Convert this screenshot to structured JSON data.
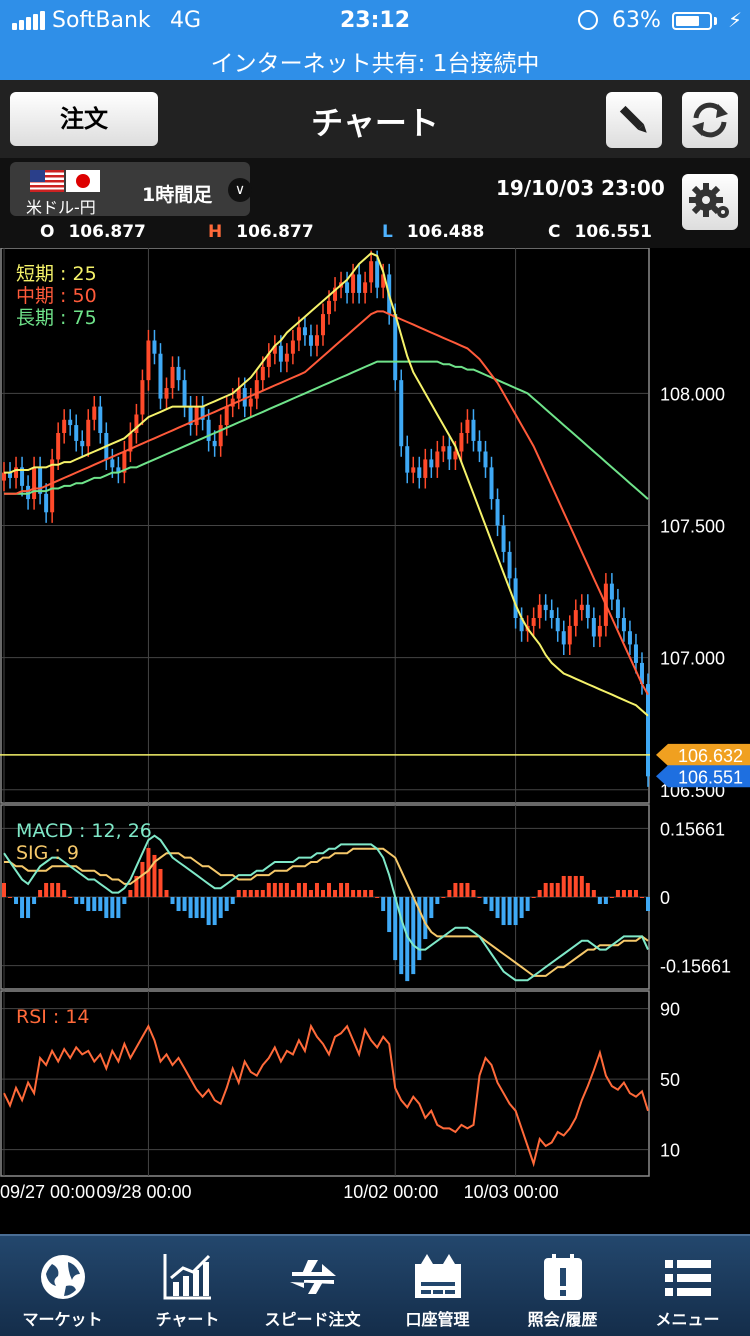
{
  "status_bar": {
    "carrier": "SoftBank",
    "network": "4G",
    "time": "23:12",
    "battery_pct": "63%",
    "battery_level": 0.63,
    "hotspot": "インターネット共有: 1台接続中"
  },
  "nav": {
    "order_label": "注文",
    "title": "チャート",
    "edit_icon": "pencil-icon",
    "refresh_icon": "refresh-icon"
  },
  "header": {
    "pair_label": "米ドル-円",
    "timeframe": "1時間足",
    "datetime": "19/10/03  23:00",
    "settings_icon": "gear-icon",
    "ohlc": [
      {
        "key": "O",
        "value": "106.877",
        "color": "#ffffff"
      },
      {
        "key": "H",
        "value": "106.877",
        "color": "#ff6a3a"
      },
      {
        "key": "L",
        "value": "106.488",
        "color": "#4fb3ff"
      },
      {
        "key": "C",
        "value": "106.551",
        "color": "#ffffff"
      }
    ]
  },
  "chart_data": [
    {
      "type": "candlestick",
      "legend": [
        {
          "label": "短期 : 25",
          "color": "#f5f26a"
        },
        {
          "label": "中期 : 50",
          "color": "#ff5a3a"
        },
        {
          "label": "長期 : 75",
          "color": "#6fe38a"
        }
      ],
      "y_ticks": [
        "108.000",
        "107.500",
        "107.000",
        "106.500"
      ],
      "y_tick_values": [
        108.0,
        107.5,
        107.0,
        106.5
      ],
      "ylim": [
        106.45,
        108.55
      ],
      "x_labels": [
        "09/27 00:00",
        "09/28 00:00",
        "10/02 00:00",
        "10/03 00:00"
      ],
      "x_label_index": [
        0,
        24,
        65,
        85
      ],
      "bars": 108,
      "close": [
        107.7,
        107.68,
        107.72,
        107.65,
        107.6,
        107.72,
        107.62,
        107.55,
        107.75,
        107.85,
        107.9,
        107.88,
        107.82,
        107.8,
        107.9,
        107.95,
        107.85,
        107.75,
        107.72,
        107.7,
        107.78,
        107.85,
        107.92,
        108.05,
        108.2,
        108.15,
        107.98,
        108.02,
        108.1,
        108.05,
        107.95,
        107.88,
        107.95,
        107.9,
        107.82,
        107.8,
        107.88,
        107.95,
        107.98,
        108.02,
        107.95,
        107.98,
        108.05,
        108.1,
        108.15,
        108.18,
        108.12,
        108.15,
        108.2,
        108.25,
        108.22,
        108.18,
        108.22,
        108.3,
        108.35,
        108.4,
        108.42,
        108.38,
        108.45,
        108.38,
        108.42,
        108.5,
        108.4,
        108.45,
        108.3,
        108.05,
        107.8,
        107.7,
        107.72,
        107.68,
        107.75,
        107.72,
        107.78,
        107.8,
        107.75,
        107.78,
        107.85,
        107.9,
        107.82,
        107.78,
        107.72,
        107.6,
        107.5,
        107.4,
        107.3,
        107.15,
        107.1,
        107.12,
        107.15,
        107.2,
        107.18,
        107.15,
        107.1,
        107.05,
        107.12,
        107.18,
        107.2,
        107.15,
        107.08,
        107.12,
        107.28,
        107.22,
        107.15,
        107.1,
        107.05,
        106.98,
        106.9,
        106.551
      ],
      "ma_short": [
        107.7,
        107.7,
        107.71,
        107.71,
        107.71,
        107.72,
        107.72,
        107.72,
        107.73,
        107.73,
        107.74,
        107.74,
        107.75,
        107.76,
        107.77,
        107.78,
        107.79,
        107.8,
        107.81,
        107.82,
        107.83,
        107.85,
        107.87,
        107.89,
        107.91,
        107.92,
        107.93,
        107.94,
        107.95,
        107.95,
        107.95,
        107.95,
        107.95,
        107.95,
        107.96,
        107.97,
        107.98,
        107.99,
        108.0,
        108.02,
        108.04,
        108.06,
        108.09,
        108.12,
        108.15,
        108.18,
        108.2,
        108.23,
        108.25,
        108.27,
        108.29,
        108.31,
        108.33,
        108.35,
        108.37,
        108.39,
        108.41,
        108.43,
        108.46,
        108.49,
        108.51,
        108.53,
        108.52,
        108.46,
        108.37,
        108.3,
        108.22,
        108.14,
        108.08,
        108.04,
        108.0,
        107.96,
        107.92,
        107.88,
        107.84,
        107.8,
        107.74,
        107.68,
        107.62,
        107.56,
        107.5,
        107.44,
        107.38,
        107.32,
        107.26,
        107.2,
        107.15,
        107.11,
        107.08,
        107.05,
        107.01,
        106.98,
        106.96,
        106.94,
        106.93,
        106.92,
        106.91,
        106.9,
        106.89,
        106.88,
        106.87,
        106.86,
        106.85,
        106.84,
        106.83,
        106.82,
        106.8,
        106.78
      ],
      "ma_mid": [
        107.62,
        107.62,
        107.62,
        107.63,
        107.63,
        107.64,
        107.64,
        107.65,
        107.66,
        107.67,
        107.68,
        107.69,
        107.7,
        107.71,
        107.72,
        107.73,
        107.74,
        107.75,
        107.76,
        107.77,
        107.78,
        107.79,
        107.8,
        107.81,
        107.82,
        107.83,
        107.84,
        107.85,
        107.86,
        107.87,
        107.88,
        107.89,
        107.9,
        107.91,
        107.92,
        107.93,
        107.94,
        107.95,
        107.96,
        107.97,
        107.98,
        107.99,
        108.0,
        108.01,
        108.02,
        108.03,
        108.04,
        108.05,
        108.06,
        108.07,
        108.08,
        108.1,
        108.12,
        108.14,
        108.16,
        108.18,
        108.2,
        108.22,
        108.24,
        108.26,
        108.28,
        108.3,
        108.31,
        108.31,
        108.3,
        108.29,
        108.28,
        108.27,
        108.26,
        108.25,
        108.24,
        108.23,
        108.22,
        108.21,
        108.2,
        108.19,
        108.18,
        108.17,
        108.15,
        108.13,
        108.1,
        108.07,
        108.04,
        108.0,
        107.96,
        107.92,
        107.88,
        107.84,
        107.8,
        107.75,
        107.7,
        107.65,
        107.6,
        107.55,
        107.5,
        107.45,
        107.4,
        107.35,
        107.3,
        107.25,
        107.2,
        107.15,
        107.1,
        107.05,
        107.0,
        106.95,
        106.9,
        106.86
      ],
      "ma_long": [
        107.62,
        107.62,
        107.62,
        107.62,
        107.62,
        107.63,
        107.63,
        107.63,
        107.64,
        107.64,
        107.65,
        107.65,
        107.66,
        107.66,
        107.67,
        107.68,
        107.68,
        107.69,
        107.7,
        107.7,
        107.71,
        107.72,
        107.72,
        107.73,
        107.74,
        107.75,
        107.76,
        107.77,
        107.78,
        107.79,
        107.8,
        107.81,
        107.82,
        107.83,
        107.84,
        107.85,
        107.86,
        107.87,
        107.88,
        107.89,
        107.9,
        107.91,
        107.92,
        107.93,
        107.94,
        107.95,
        107.96,
        107.97,
        107.98,
        107.99,
        108.0,
        108.01,
        108.02,
        108.03,
        108.04,
        108.05,
        108.06,
        108.07,
        108.08,
        108.09,
        108.1,
        108.11,
        108.12,
        108.12,
        108.12,
        108.12,
        108.12,
        108.12,
        108.12,
        108.12,
        108.12,
        108.12,
        108.12,
        108.11,
        108.11,
        108.1,
        108.1,
        108.09,
        108.09,
        108.08,
        108.07,
        108.06,
        108.05,
        108.04,
        108.03,
        108.02,
        108.01,
        108.0,
        107.98,
        107.96,
        107.94,
        107.92,
        107.9,
        107.88,
        107.86,
        107.84,
        107.82,
        107.8,
        107.78,
        107.76,
        107.74,
        107.72,
        107.7,
        107.68,
        107.66,
        107.64,
        107.62,
        107.6
      ],
      "current_line": 106.632,
      "price_tags": [
        {
          "value": 106.632,
          "label": "106.632",
          "color": "#f0a020"
        },
        {
          "value": 106.551,
          "label": "106.551",
          "color": "#1e6fe0"
        }
      ]
    },
    {
      "type": "line+bar",
      "legend": [
        {
          "label": "MACD : 12, 26",
          "color": "#7fe8c8"
        },
        {
          "label": "SIG : 9",
          "color": "#f5c86a"
        }
      ],
      "y_ticks": [
        "0.15661",
        "0",
        "-0.15661"
      ],
      "y_tick_values": [
        0.15661,
        0,
        -0.15661
      ],
      "ylim": [
        -0.21,
        0.21
      ],
      "macd": [
        0.1,
        0.08,
        0.06,
        0.04,
        0.03,
        0.05,
        0.07,
        0.08,
        0.09,
        0.09,
        0.08,
        0.07,
        0.06,
        0.05,
        0.04,
        0.04,
        0.03,
        0.02,
        0.01,
        0.01,
        0.02,
        0.04,
        0.07,
        0.1,
        0.13,
        0.14,
        0.13,
        0.11,
        0.09,
        0.08,
        0.07,
        0.06,
        0.05,
        0.04,
        0.03,
        0.02,
        0.02,
        0.03,
        0.04,
        0.05,
        0.05,
        0.05,
        0.06,
        0.06,
        0.07,
        0.08,
        0.08,
        0.08,
        0.08,
        0.09,
        0.09,
        0.09,
        0.1,
        0.1,
        0.11,
        0.11,
        0.12,
        0.12,
        0.12,
        0.12,
        0.12,
        0.12,
        0.11,
        0.09,
        0.05,
        0.0,
        -0.05,
        -0.09,
        -0.11,
        -0.12,
        -0.12,
        -0.11,
        -0.1,
        -0.09,
        -0.08,
        -0.07,
        -0.07,
        -0.07,
        -0.08,
        -0.09,
        -0.11,
        -0.13,
        -0.15,
        -0.17,
        -0.18,
        -0.19,
        -0.19,
        -0.19,
        -0.18,
        -0.17,
        -0.16,
        -0.15,
        -0.14,
        -0.13,
        -0.12,
        -0.11,
        -0.1,
        -0.1,
        -0.11,
        -0.12,
        -0.12,
        -0.11,
        -0.1,
        -0.09,
        -0.09,
        -0.09,
        -0.09,
        -0.12
      ],
      "signal": [
        0.08,
        0.08,
        0.07,
        0.07,
        0.06,
        0.06,
        0.06,
        0.06,
        0.07,
        0.07,
        0.07,
        0.07,
        0.07,
        0.06,
        0.06,
        0.06,
        0.05,
        0.05,
        0.04,
        0.04,
        0.03,
        0.03,
        0.04,
        0.05,
        0.06,
        0.08,
        0.09,
        0.1,
        0.1,
        0.1,
        0.09,
        0.09,
        0.08,
        0.07,
        0.07,
        0.06,
        0.05,
        0.05,
        0.05,
        0.04,
        0.04,
        0.04,
        0.05,
        0.05,
        0.05,
        0.06,
        0.06,
        0.06,
        0.07,
        0.07,
        0.07,
        0.08,
        0.08,
        0.09,
        0.09,
        0.1,
        0.1,
        0.1,
        0.11,
        0.11,
        0.11,
        0.11,
        0.11,
        0.11,
        0.1,
        0.09,
        0.06,
        0.03,
        0.0,
        -0.03,
        -0.06,
        -0.08,
        -0.09,
        -0.09,
        -0.09,
        -0.09,
        -0.09,
        -0.09,
        -0.09,
        -0.09,
        -0.1,
        -0.11,
        -0.12,
        -0.13,
        -0.14,
        -0.15,
        -0.16,
        -0.17,
        -0.18,
        -0.18,
        -0.18,
        -0.17,
        -0.16,
        -0.16,
        -0.15,
        -0.14,
        -0.13,
        -0.12,
        -0.12,
        -0.11,
        -0.11,
        -0.11,
        -0.11,
        -0.1,
        -0.1,
        -0.1,
        -0.09,
        -0.1
      ]
    },
    {
      "type": "line",
      "legend": [
        {
          "label": "RSI : 14",
          "color": "#ff6a3a"
        }
      ],
      "y_ticks": [
        "90",
        "50",
        "10"
      ],
      "y_tick_values": [
        90,
        50,
        10
      ],
      "ylim": [
        -5,
        100
      ],
      "rsi": [
        42,
        35,
        45,
        38,
        48,
        42,
        62,
        58,
        66,
        60,
        67,
        62,
        68,
        64,
        66,
        60,
        64,
        56,
        66,
        60,
        70,
        62,
        68,
        74,
        80,
        72,
        60,
        64,
        58,
        62,
        56,
        50,
        44,
        40,
        44,
        38,
        36,
        45,
        56,
        48,
        60,
        54,
        52,
        58,
        62,
        68,
        60,
        66,
        64,
        72,
        66,
        80,
        74,
        70,
        64,
        74,
        76,
        80,
        72,
        64,
        78,
        72,
        68,
        74,
        70,
        45,
        38,
        34,
        40,
        36,
        28,
        32,
        24,
        22,
        22,
        20,
        24,
        22,
        24,
        52,
        62,
        58,
        48,
        42,
        36,
        32,
        22,
        12,
        2,
        16,
        12,
        14,
        20,
        18,
        22,
        28,
        38,
        46,
        55,
        65,
        52,
        46,
        44,
        48,
        42,
        40,
        43,
        32
      ]
    }
  ],
  "tab_bar": [
    {
      "label": "マーケット",
      "icon": "globe-icon"
    },
    {
      "label": "チャート",
      "icon": "chart-icon"
    },
    {
      "label": "スピード注文",
      "icon": "speed-order-icon"
    },
    {
      "label": "口座管理",
      "icon": "account-icon"
    },
    {
      "label": "照会/履歴",
      "icon": "history-icon"
    },
    {
      "label": "メニュー",
      "icon": "menu-icon"
    }
  ]
}
